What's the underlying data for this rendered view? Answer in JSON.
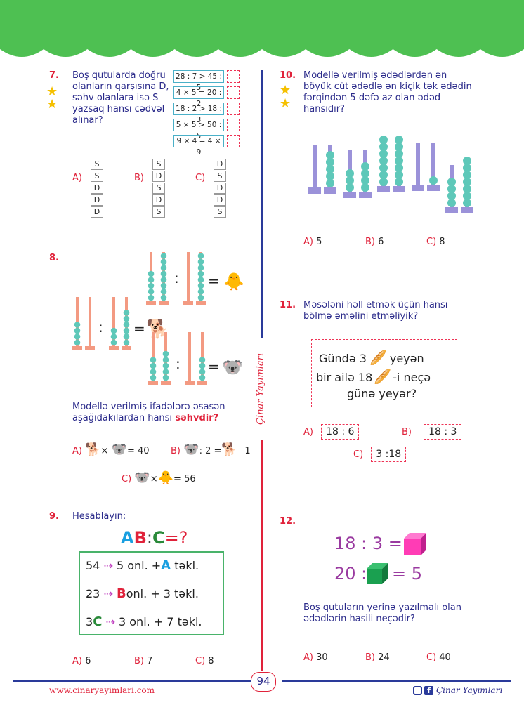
{
  "header": {
    "color": "#4ec052"
  },
  "side_brand": "Çinar Yayımları",
  "page_number": "94",
  "footer": {
    "website": "www.cinaryayimlari.com",
    "brand": "Çinar Yayımları"
  },
  "q7": {
    "num": "7.",
    "text": "Boş qutularda doğru olanların qarşısına D, səhv olanlara isə S yazsaq hansı cədvəl alınar?",
    "rows": [
      "28 : 7  > 45 : 5",
      "4 × 5  =  20 : 2",
      "18 : 2 > 18 : 3",
      "5 × 5  > 50 : 5",
      "9 × 4 = 4 × 9"
    ],
    "options": [
      {
        "label": "A)",
        "col": [
          "S",
          "S",
          "D",
          "D",
          "D"
        ]
      },
      {
        "label": "B)",
        "col": [
          "S",
          "D",
          "S",
          "D",
          "S"
        ]
      },
      {
        "label": "C)",
        "col": [
          "D",
          "S",
          "D",
          "D",
          "S"
        ]
      }
    ]
  },
  "q8": {
    "num": "8.",
    "eq1": ":",
    "eq2": ":",
    "eq3": ":",
    "eqs": "=",
    "text": "Modellə verilmiş ifadələrə əsasən aşağıdakılardan hansı",
    "bold": "səhvdir?",
    "options": [
      {
        "label": "A)",
        "expr": "× ",
        "tail": "= 40"
      },
      {
        "label": "B)",
        "expr": ": 2 =",
        "tail": "– 1"
      },
      {
        "label": "C)",
        "expr": "×",
        "tail": "= 56"
      }
    ]
  },
  "q9": {
    "num": "9.",
    "text": "Hesablayın:",
    "a": "A",
    "b": "B",
    "colon": ":",
    "c": "C",
    "eq": "=?",
    "rows": [
      {
        "l": "54",
        "r1": "5 onl. +",
        "r2": "A",
        "r3": "təkl."
      },
      {
        "l": "23",
        "r1": "",
        "r2": "B",
        "r3": "onl. + 3 təkl."
      },
      {
        "l": "3",
        "l2": "C",
        "r1": "3 onl. + 7 təkl.",
        "r2": "",
        "r3": ""
      }
    ],
    "options": [
      {
        "label": "A)",
        "value": "6"
      },
      {
        "label": "B)",
        "value": "7"
      },
      {
        "label": "C)",
        "value": "8"
      }
    ]
  },
  "q10": {
    "num": "10.",
    "text": "Modellə verilmiş ədədlərdən ən böyük cüt ədədlə ən kiçik tək ədədin fərqindən 5 dəfə az olan ədəd hansıdır?",
    "options": [
      {
        "label": "A)",
        "value": "5"
      },
      {
        "label": "B)",
        "value": "6"
      },
      {
        "label": "C)",
        "value": "8"
      }
    ]
  },
  "q11": {
    "num": "11.",
    "text": "Məsələni həll etmək üçün hansı bölmə əməlini etməliyik?",
    "l1a": "Gündə 3",
    "l1b": "yeyən",
    "l2a": "bir ailə 18",
    "l2b": "-i  neçə",
    "l3": "günə  yeyər?",
    "options": [
      {
        "label": "A)",
        "value": "18 : 6"
      },
      {
        "label": "B)",
        "value": "18 : 3"
      },
      {
        "label": "C)",
        "value": "3 :18"
      }
    ]
  },
  "q12": {
    "num": "12.",
    "e1": "18 : 3 =",
    "e2a": "20 :",
    "e2b": "= 5",
    "text": "Boş qutuların yerinə yazılmalı olan ədədlərin hasili neçədir?",
    "options": [
      {
        "label": "A)",
        "value": "30"
      },
      {
        "label": "B)",
        "value": "24"
      },
      {
        "label": "C)",
        "value": "40"
      }
    ]
  }
}
